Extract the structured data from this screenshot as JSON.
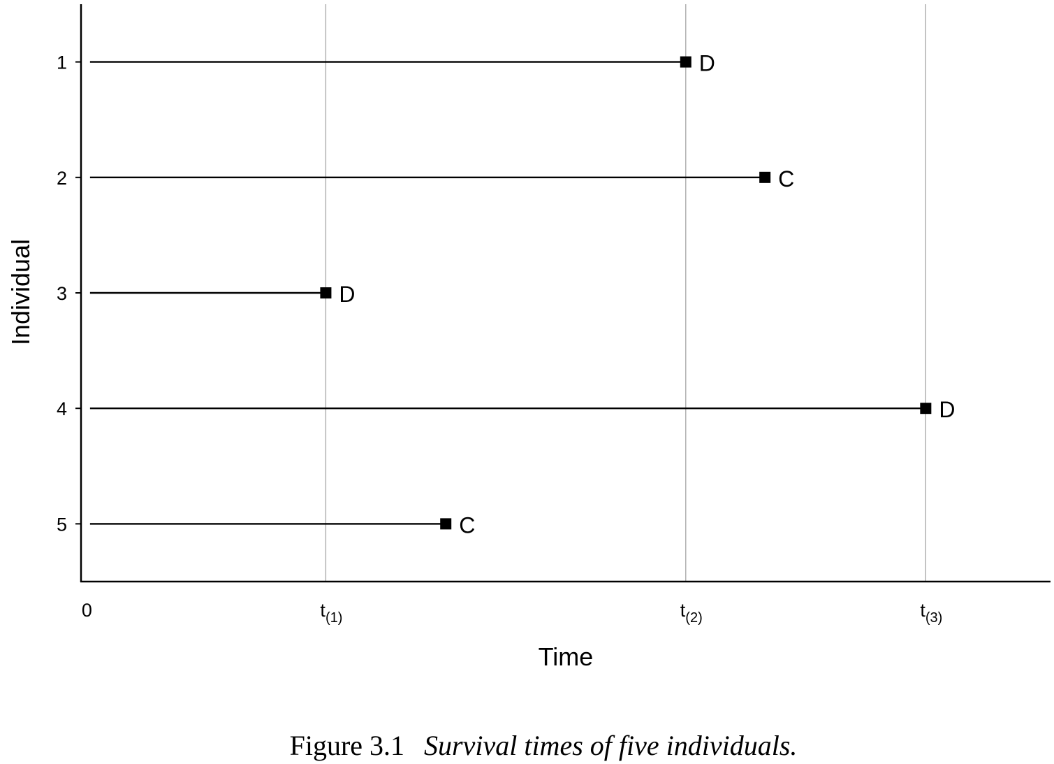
{
  "chart_data": {
    "type": "line",
    "xlabel": "Time",
    "ylabel": "Individual",
    "x_ticks": [
      {
        "label": "0",
        "base": "0",
        "sub": ""
      },
      {
        "label": "t(1)",
        "base": "t",
        "sub": "(1)"
      },
      {
        "label": "t(2)",
        "base": "t",
        "sub": "(2)"
      },
      {
        "label": "t(3)",
        "base": "t",
        "sub": "(3)"
      }
    ],
    "x_tick_values": [
      0,
      1,
      2.5,
      3.5
    ],
    "xlim": [
      -0.02,
      4.02
    ],
    "ylim": [
      0.5,
      5.5
    ],
    "grid": "vertical lines at t(1), t(2), t(3)",
    "grid_x": [
      1,
      2.5,
      3.5
    ],
    "series": [
      {
        "individual": "1",
        "start": 0,
        "end": 2.5,
        "status": "D"
      },
      {
        "individual": "2",
        "start": 0,
        "end": 2.83,
        "status": "C"
      },
      {
        "individual": "3",
        "start": 0,
        "end": 1,
        "status": "D"
      },
      {
        "individual": "4",
        "start": 0,
        "end": 3.5,
        "status": "D"
      },
      {
        "individual": "5",
        "start": 0,
        "end": 1.5,
        "status": "C"
      }
    ]
  },
  "caption": {
    "figure_label": "Figure 3.1",
    "text": "Survival times of five individuals."
  },
  "colors": {
    "axis": "#000000",
    "grid": "#a6a6a6",
    "line": "#000000",
    "marker": "#000000"
  }
}
